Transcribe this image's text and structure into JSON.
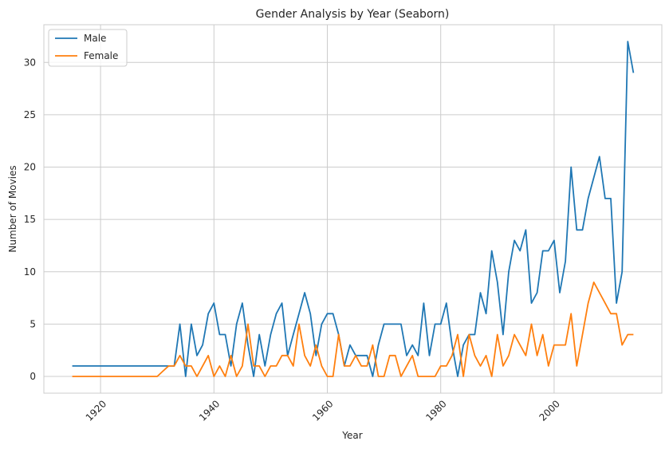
{
  "chart_data": {
    "type": "line",
    "title": "Gender Analysis by Year (Seaborn)",
    "xlabel": "Year",
    "ylabel": "Number of Movies",
    "xlim": [
      1910,
      2019
    ],
    "ylim": [
      -1.6,
      33.6
    ],
    "xticks": [
      1920,
      1940,
      1960,
      1980,
      2000
    ],
    "yticks": [
      0,
      5,
      10,
      15,
      20,
      25,
      30
    ],
    "grid": true,
    "legend_position": "top-left",
    "series": [
      {
        "name": "Male",
        "color": "#1f77b4",
        "x": [
          1915,
          1916,
          1917,
          1918,
          1919,
          1920,
          1921,
          1922,
          1923,
          1924,
          1925,
          1926,
          1927,
          1928,
          1929,
          1930,
          1931,
          1932,
          1933,
          1934,
          1935,
          1936,
          1937,
          1938,
          1939,
          1940,
          1941,
          1942,
          1943,
          1944,
          1945,
          1946,
          1947,
          1948,
          1949,
          1950,
          1951,
          1952,
          1953,
          1954,
          1955,
          1956,
          1957,
          1958,
          1959,
          1960,
          1961,
          1962,
          1963,
          1964,
          1965,
          1966,
          1967,
          1968,
          1969,
          1970,
          1971,
          1972,
          1973,
          1974,
          1975,
          1976,
          1977,
          1978,
          1979,
          1980,
          1981,
          1982,
          1983,
          1984,
          1985,
          1986,
          1987,
          1988,
          1989,
          1990,
          1991,
          1992,
          1993,
          1994,
          1995,
          1996,
          1997,
          1998,
          1999,
          2000,
          2001,
          2002,
          2003,
          2004,
          2005,
          2006,
          2007,
          2008,
          2009,
          2010,
          2011,
          2012,
          2013,
          2014
        ],
        "y": [
          1,
          1,
          1,
          1,
          1,
          1,
          1,
          1,
          1,
          1,
          1,
          1,
          1,
          1,
          1,
          1,
          1,
          1,
          1,
          5,
          0,
          5,
          2,
          3,
          6,
          7,
          4,
          4,
          1,
          5,
          7,
          3,
          0,
          4,
          1,
          4,
          6,
          7,
          2,
          4,
          6,
          8,
          6,
          2,
          5,
          6,
          6,
          4,
          1,
          3,
          2,
          2,
          2,
          0,
          3,
          5,
          5,
          5,
          5,
          2,
          3,
          2,
          7,
          2,
          5,
          5,
          7,
          3,
          0,
          3,
          4,
          4,
          8,
          6,
          12,
          9,
          4,
          10,
          13,
          12,
          14,
          7,
          8,
          12,
          12,
          13,
          8,
          11,
          20,
          14,
          14,
          17,
          19,
          21,
          17,
          17,
          7,
          10,
          32,
          29
        ]
      },
      {
        "name": "Female",
        "color": "#ff7f0e",
        "x": [
          1915,
          1916,
          1917,
          1918,
          1919,
          1920,
          1921,
          1922,
          1923,
          1924,
          1925,
          1926,
          1927,
          1928,
          1929,
          1930,
          1931,
          1932,
          1933,
          1934,
          1935,
          1936,
          1937,
          1938,
          1939,
          1940,
          1941,
          1942,
          1943,
          1944,
          1945,
          1946,
          1947,
          1948,
          1949,
          1950,
          1951,
          1952,
          1953,
          1954,
          1955,
          1956,
          1957,
          1958,
          1959,
          1960,
          1961,
          1962,
          1963,
          1964,
          1965,
          1966,
          1967,
          1968,
          1969,
          1970,
          1971,
          1972,
          1973,
          1974,
          1975,
          1976,
          1977,
          1978,
          1979,
          1980,
          1981,
          1982,
          1983,
          1984,
          1985,
          1986,
          1987,
          1988,
          1989,
          1990,
          1991,
          1992,
          1993,
          1994,
          1995,
          1996,
          1997,
          1998,
          1999,
          2000,
          2001,
          2002,
          2003,
          2004,
          2005,
          2006,
          2007,
          2008,
          2009,
          2010,
          2011,
          2012,
          2013,
          2014
        ],
        "y": [
          0,
          0,
          0,
          0,
          0,
          0,
          0,
          0,
          0,
          0,
          0,
          0,
          0,
          0,
          0,
          0,
          0.5,
          1,
          1,
          2,
          1,
          1,
          0,
          1,
          2,
          0,
          1,
          0,
          2,
          0,
          1,
          5,
          1,
          1,
          0,
          1,
          1,
          2,
          2,
          1,
          5,
          2,
          1,
          3,
          1,
          0,
          0,
          4,
          1,
          1,
          2,
          1,
          1,
          3,
          0,
          0,
          2,
          2,
          0,
          1,
          2,
          0,
          0,
          0,
          0,
          1,
          1,
          2,
          4,
          0,
          4,
          2,
          1,
          2,
          0,
          4,
          1,
          2,
          4,
          3,
          2,
          5,
          2,
          4,
          1,
          3,
          3,
          3,
          6,
          1,
          4,
          7,
          9,
          8,
          7,
          6,
          6,
          3,
          4,
          4
        ]
      }
    ]
  }
}
